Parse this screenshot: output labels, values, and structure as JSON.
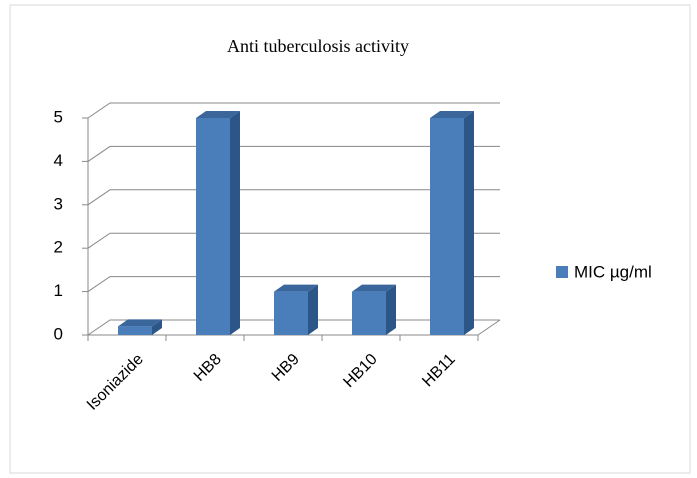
{
  "chart_data": {
    "type": "bar3d",
    "title": "Anti tuberculosis  activity",
    "categories": [
      "Isoniazide",
      "HB8",
      "HB9",
      "HB10",
      "HB11"
    ],
    "series": [
      {
        "name": "MIC µg/ml",
        "color": "#4a7ebb",
        "values": [
          0.2,
          5,
          1,
          1,
          5
        ]
      }
    ],
    "ylim": [
      0,
      5
    ],
    "yticks": [
      0,
      1,
      2,
      3,
      4,
      5
    ],
    "grid": true,
    "legend": "right"
  }
}
